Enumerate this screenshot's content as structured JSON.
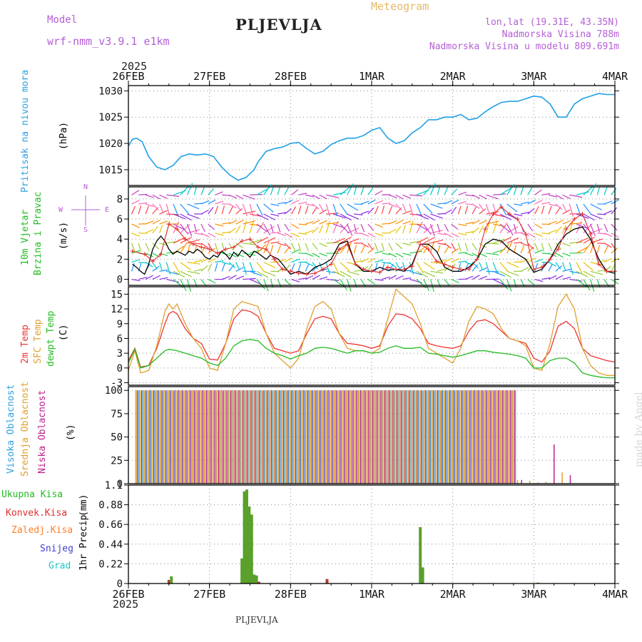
{
  "header": {
    "model_label": "Model",
    "model_name": "wrf-nmm_v3.9.1  e1km",
    "station": "PLJEVLJA",
    "chart_kind": "Meteogram",
    "lonlat": "lon,lat (19.31E, 43.35N)",
    "elevation": "Nadmorska Visina 788m",
    "model_elevation": "Nadmorska Visina u modelu 809.691m",
    "footer_station": "PLJEVLJA",
    "watermark": "made by Angel"
  },
  "colors": {
    "pressure": "#1ea0e6",
    "wind_speed": "#000000",
    "wind_gust": "#e03030",
    "t2m": "#ee3333",
    "sfc": "#e0a030",
    "dewpt": "#22bb22",
    "high_cloud": "#2f9bdc",
    "mid_cloud": "#e0a030",
    "low_cloud": "#c0208a",
    "precip_total": "#5aa02a",
    "precip_conv": "#b33a2a"
  },
  "chart_data": [
    {
      "type": "line",
      "panel": "pressure",
      "ylabel": "Pritisak na nivou mora",
      "unit": "(hPa)",
      "year": "2025",
      "x_tick_labels": [
        "26FEB",
        "27FEB",
        "28FEB",
        "1MAR",
        "2MAR",
        "3MAR",
        "4MAR"
      ],
      "x_range_days": [
        0,
        6
      ],
      "ylim": [
        1012,
        1031
      ],
      "y_ticks": [
        "1015",
        "1020",
        "1025",
        "1030"
      ],
      "series": [
        {
          "x": [
            0,
            0.05,
            0.1,
            0.17,
            0.25,
            0.35,
            0.45,
            0.55,
            0.65,
            0.75,
            0.85,
            0.95,
            1.05,
            1.15,
            1.25,
            1.35,
            1.45,
            1.55,
            1.6,
            1.7,
            1.8,
            1.9,
            2.0,
            2.1,
            2.2,
            2.3,
            2.4,
            2.5,
            2.6,
            2.7,
            2.8,
            2.9,
            3.0,
            3.1,
            3.2,
            3.3,
            3.4,
            3.5,
            3.6,
            3.7,
            3.8,
            3.9,
            4.0,
            4.1,
            4.2,
            4.3,
            4.4,
            4.5,
            4.6,
            4.7,
            4.8,
            4.9,
            5.0,
            5.1,
            5.2,
            5.3,
            5.4,
            5.5,
            5.6,
            5.7,
            5.8,
            5.9,
            6.0
          ],
          "values": [
            1019.5,
            1020.8,
            1021,
            1020.3,
            1017.5,
            1015.5,
            1015,
            1015.8,
            1017.5,
            1018,
            1017.8,
            1018,
            1017.5,
            1015.5,
            1014,
            1013,
            1013.5,
            1015,
            1016.5,
            1018.5,
            1019,
            1019.3,
            1020,
            1020.2,
            1019,
            1018,
            1018.5,
            1019.8,
            1020.5,
            1021,
            1021,
            1021.5,
            1022.5,
            1023,
            1021,
            1020,
            1020.5,
            1022,
            1023,
            1024.5,
            1024.5,
            1025,
            1025,
            1025.5,
            1024.5,
            1024.8,
            1026,
            1027,
            1027.8,
            1028,
            1028,
            1028.5,
            1029,
            1028.8,
            1027.5,
            1025,
            1025,
            1027.5,
            1028.5,
            1029,
            1029.5,
            1029.3,
            1029.3
          ]
        }
      ]
    },
    {
      "type": "line",
      "panel": "wind",
      "ylabel": "10m Vjetar",
      "ylabel2": "Brzina i Pravac",
      "unit": "(m/s)",
      "compass": {
        "n": "N",
        "s": "S",
        "e": "E",
        "w": "W"
      },
      "ylim": [
        -0.6,
        9.2
      ],
      "y_ticks": [
        "0",
        "2",
        "4",
        "6",
        "8"
      ],
      "series": [
        {
          "name": "speed",
          "x": [
            0.05,
            0.1,
            0.15,
            0.2,
            0.25,
            0.3,
            0.35,
            0.4,
            0.45,
            0.5,
            0.55,
            0.6,
            0.65,
            0.7,
            0.75,
            0.8,
            0.85,
            0.9,
            0.95,
            1.0,
            1.05,
            1.1,
            1.15,
            1.2,
            1.25,
            1.3,
            1.35,
            1.4,
            1.45,
            1.5,
            1.55,
            1.6,
            1.65,
            1.7,
            1.75,
            1.8,
            1.85,
            1.9,
            1.95,
            2.0,
            2.1,
            2.2,
            2.3,
            2.4,
            2.5,
            2.6,
            2.7,
            2.8,
            2.9,
            3.0,
            3.1,
            3.2,
            3.3,
            3.4,
            3.5,
            3.6,
            3.7,
            3.8,
            3.9,
            4.0,
            4.1,
            4.2,
            4.3,
            4.4,
            4.5,
            4.6,
            4.7,
            4.8,
            4.9,
            5.0,
            5.1,
            5.2,
            5.3,
            5.4,
            5.5,
            5.6,
            5.7,
            5.8,
            5.9,
            6.0
          ],
          "values": [
            1.5,
            1.2,
            0.8,
            0.5,
            1.5,
            3,
            3.8,
            4.3,
            3.8,
            3,
            2.5,
            2.8,
            2.6,
            2.4,
            2.8,
            2.6,
            3,
            2.7,
            2.2,
            2,
            2.4,
            2.2,
            2.8,
            2.5,
            2.0,
            2.7,
            2.3,
            2.9,
            2.6,
            2.2,
            2.8,
            2.6,
            2.3,
            2.0,
            2.4,
            2.2,
            2.0,
            1.5,
            1.0,
            0.5,
            0.8,
            0.5,
            1.2,
            1.5,
            2,
            3.5,
            3.8,
            1.5,
            0.8,
            0.8,
            1.2,
            0.9,
            1.0,
            0.8,
            1.5,
            3.5,
            3.5,
            2.8,
            1.2,
            0.8,
            0.8,
            1.2,
            2,
            3.5,
            4.0,
            3.8,
            3.0,
            2.5,
            2.0,
            0.7,
            1.0,
            2.0,
            3.5,
            4.5,
            5.0,
            5.2,
            4.0,
            2.0,
            0.8,
            0.6
          ]
        },
        {
          "name": "gust",
          "x": [
            0.05,
            0.2,
            0.3,
            0.4,
            0.5,
            0.6,
            0.7,
            0.8,
            0.9,
            1.0,
            1.1,
            1.2,
            1.3,
            1.4,
            1.5,
            1.6,
            1.7,
            1.8,
            1.9,
            2.0,
            2.1,
            2.2,
            2.3,
            2.4,
            2.5,
            2.6,
            2.7,
            2.8,
            2.9,
            3.0,
            3.1,
            3.2,
            3.3,
            3.4,
            3.5,
            3.6,
            3.7,
            3.8,
            3.9,
            4.0,
            4.1,
            4.2,
            4.3,
            4.4,
            4.5,
            4.6,
            4.7,
            4.8,
            4.9,
            5.0,
            5.1,
            5.2,
            5.3,
            5.4,
            5.5,
            5.6,
            5.7,
            5.8,
            5.9,
            6.0
          ],
          "values": [
            2.8,
            2.5,
            1.8,
            2.5,
            5.5,
            5.0,
            4.0,
            3.5,
            3.2,
            3.0,
            2.6,
            3.0,
            3.2,
            3.8,
            4.0,
            3.2,
            3.0,
            2.0,
            1.0,
            0.8,
            0.6,
            0.5,
            0.6,
            1.0,
            1.5,
            3.0,
            3.5,
            1.5,
            1.0,
            0.8,
            0.7,
            1.2,
            1.0,
            1.0,
            1.3,
            3.5,
            3.0,
            1.8,
            1.5,
            1.2,
            1.0,
            1.0,
            2.0,
            5.0,
            6.5,
            7.2,
            6.5,
            6.0,
            4.5,
            1.0,
            1.2,
            2.0,
            3.0,
            5.0,
            6.0,
            6.5,
            4.5,
            1.5,
            0.8,
            0.8
          ]
        }
      ],
      "arrow_rows": [
        0,
        0.8,
        1.7,
        2.6,
        3.6,
        4.6,
        5.5,
        6.5,
        7.5,
        8.4
      ]
    },
    {
      "type": "line",
      "panel": "temperature",
      "ylabel": "2m Temp",
      "ylabel2": "SFC Temp",
      "ylabel3": "dewpt Temp",
      "unit": "(C)",
      "ylim": [
        -3.5,
        16.5
      ],
      "y_ticks": [
        "-3",
        "0",
        "3",
        "6",
        "9",
        "12",
        "15"
      ],
      "series": [
        {
          "name": "2m",
          "x": [
            0,
            0.08,
            0.15,
            0.25,
            0.35,
            0.45,
            0.5,
            0.55,
            0.6,
            0.7,
            0.8,
            0.9,
            1.0,
            1.1,
            1.2,
            1.3,
            1.4,
            1.5,
            1.6,
            1.7,
            1.8,
            1.9,
            2.0,
            2.1,
            2.2,
            2.3,
            2.4,
            2.5,
            2.6,
            2.7,
            2.8,
            2.9,
            3.0,
            3.1,
            3.2,
            3.3,
            3.4,
            3.5,
            3.6,
            3.7,
            3.8,
            3.9,
            4.0,
            4.1,
            4.2,
            4.3,
            4.4,
            4.5,
            4.6,
            4.7,
            4.8,
            4.9,
            5.0,
            5.1,
            5.2,
            5.3,
            5.4,
            5.5,
            5.6,
            5.7,
            5.8,
            5.9,
            6.0
          ],
          "values": [
            1.5,
            4.0,
            0.2,
            0.5,
            4.0,
            9.0,
            11.0,
            11.5,
            11.0,
            8.0,
            6.0,
            5.0,
            1.8,
            1.6,
            5.0,
            10.0,
            11.8,
            11.5,
            10.5,
            7.0,
            4.0,
            3.5,
            3.0,
            3.5,
            7.0,
            10.0,
            10.5,
            10.0,
            7.0,
            5.0,
            4.8,
            4.5,
            4.0,
            4.5,
            8.5,
            11.0,
            10.8,
            10.0,
            8.0,
            5.0,
            4.5,
            4.2,
            4.0,
            4.5,
            7.5,
            9.5,
            9.8,
            9.0,
            7.5,
            6.0,
            5.5,
            5.0,
            2.0,
            1.2,
            3.5,
            8.5,
            9.5,
            8.0,
            4.0,
            2.5,
            2.0,
            1.5,
            1.2
          ]
        },
        {
          "name": "sfc",
          "x": [
            0,
            0.08,
            0.15,
            0.25,
            0.35,
            0.45,
            0.5,
            0.55,
            0.6,
            0.7,
            0.8,
            0.9,
            1.0,
            1.1,
            1.2,
            1.3,
            1.4,
            1.5,
            1.6,
            1.7,
            1.8,
            1.9,
            2.0,
            2.1,
            2.2,
            2.3,
            2.4,
            2.5,
            2.6,
            2.7,
            2.8,
            2.9,
            3.0,
            3.1,
            3.2,
            3.3,
            3.4,
            3.5,
            3.6,
            3.7,
            3.8,
            3.9,
            4.0,
            4.1,
            4.2,
            4.3,
            4.4,
            4.5,
            4.6,
            4.7,
            4.8,
            4.9,
            5.0,
            5.1,
            5.2,
            5.3,
            5.4,
            5.5,
            5.6,
            5.7,
            5.8,
            5.9,
            6.0
          ],
          "values": [
            -0.5,
            3.5,
            -1.0,
            -0.5,
            4.5,
            11.5,
            13.0,
            12.0,
            13.0,
            9.0,
            6.0,
            4.0,
            0.0,
            -0.5,
            5.0,
            12.0,
            13.5,
            13.0,
            12.5,
            7.0,
            3.0,
            1.5,
            0.0,
            2.0,
            8.0,
            12.5,
            13.5,
            12.0,
            7.0,
            4.0,
            3.5,
            3.5,
            3.0,
            4.0,
            10.0,
            16.0,
            14.5,
            13.0,
            9.0,
            4.0,
            3.0,
            2.0,
            1.0,
            4.0,
            9.5,
            12.5,
            12.0,
            11.0,
            8.0,
            6.0,
            5.5,
            4.5,
            0.0,
            -0.5,
            5.0,
            12.5,
            15.0,
            12.0,
            4.0,
            0.5,
            -1.0,
            -1.5,
            -1.5
          ]
        },
        {
          "name": "dewpt",
          "x": [
            0,
            0.08,
            0.15,
            0.25,
            0.35,
            0.45,
            0.5,
            0.6,
            0.7,
            0.8,
            0.9,
            1.0,
            1.1,
            1.2,
            1.3,
            1.4,
            1.5,
            1.6,
            1.7,
            1.8,
            1.9,
            2.0,
            2.1,
            2.2,
            2.3,
            2.4,
            2.5,
            2.6,
            2.7,
            2.8,
            2.9,
            3.0,
            3.1,
            3.2,
            3.3,
            3.4,
            3.5,
            3.6,
            3.7,
            3.8,
            3.9,
            4.0,
            4.1,
            4.2,
            4.3,
            4.4,
            4.5,
            4.6,
            4.7,
            4.8,
            4.9,
            5.0,
            5.1,
            5.2,
            5.3,
            5.4,
            5.5,
            5.6,
            5.7,
            5.8,
            5.9,
            6.0
          ],
          "values": [
            1.0,
            3.8,
            0.0,
            0.5,
            2.0,
            3.5,
            3.8,
            3.5,
            3.0,
            2.5,
            2.0,
            1.0,
            0.5,
            2.0,
            4.5,
            5.5,
            5.8,
            5.5,
            4.0,
            3.0,
            2.5,
            1.8,
            2.5,
            3.0,
            4.0,
            4.2,
            4.0,
            3.5,
            3.0,
            3.5,
            3.5,
            3.0,
            3.2,
            4.0,
            4.5,
            4.0,
            4.0,
            4.2,
            3.0,
            2.8,
            2.5,
            2.2,
            2.5,
            3.0,
            3.5,
            3.5,
            3.2,
            3.0,
            2.8,
            2.5,
            2.0,
            0.0,
            0.0,
            1.5,
            2.0,
            2.0,
            1.0,
            -1.0,
            -1.5,
            -1.8,
            -2.0,
            -2.0
          ]
        }
      ]
    },
    {
      "type": "bar",
      "panel": "cloud",
      "ylabel": "Visoka Oblacnost",
      "ylabel2": "Srednja Oblacnost",
      "ylabel3": "Niska Oblacnost",
      "unit": "(%)",
      "ylim": [
        0,
        104
      ],
      "y_ticks": [
        "0",
        "25",
        "50",
        "75",
        "100"
      ],
      "overcast_until": 4.78,
      "series": [
        {
          "name": "after",
          "x": [
            4.8,
            4.85,
            4.95,
            5.05,
            5.15,
            5.25,
            5.35,
            5.45
          ],
          "values": [
            4,
            4,
            3,
            1,
            2,
            42,
            12,
            9
          ]
        }
      ]
    },
    {
      "type": "bar",
      "panel": "precip",
      "ylabel": "1hr Precip",
      "unit": "(mm)",
      "legend": [
        "Ukupna Kisa",
        "Konvek.Kisa",
        "Zaledj.Kisa",
        "Snijeg",
        "Grad"
      ],
      "legend_colors": [
        "#22bb22",
        "#e03030",
        "#ff7f27",
        "#3f3fd6",
        "#22c5c5"
      ],
      "ylim": [
        0,
        1.1
      ],
      "y_ticks": [
        "0",
        "0.22",
        "0.44",
        "0.66",
        "0.88",
        "1.1"
      ],
      "series": [
        {
          "name": "Ukupna Kisa",
          "x": [
            0.5,
            0.53,
            1.4,
            1.43,
            1.46,
            1.49,
            1.52,
            1.55,
            1.58,
            1.61,
            2.45,
            3.6,
            3.63,
            5.05
          ],
          "values": [
            0.04,
            0.08,
            0.28,
            1.03,
            1.05,
            0.86,
            0.77,
            0.1,
            0.09,
            0.02,
            0.05,
            0.63,
            0.18,
            0.01
          ]
        }
      ]
    }
  ]
}
